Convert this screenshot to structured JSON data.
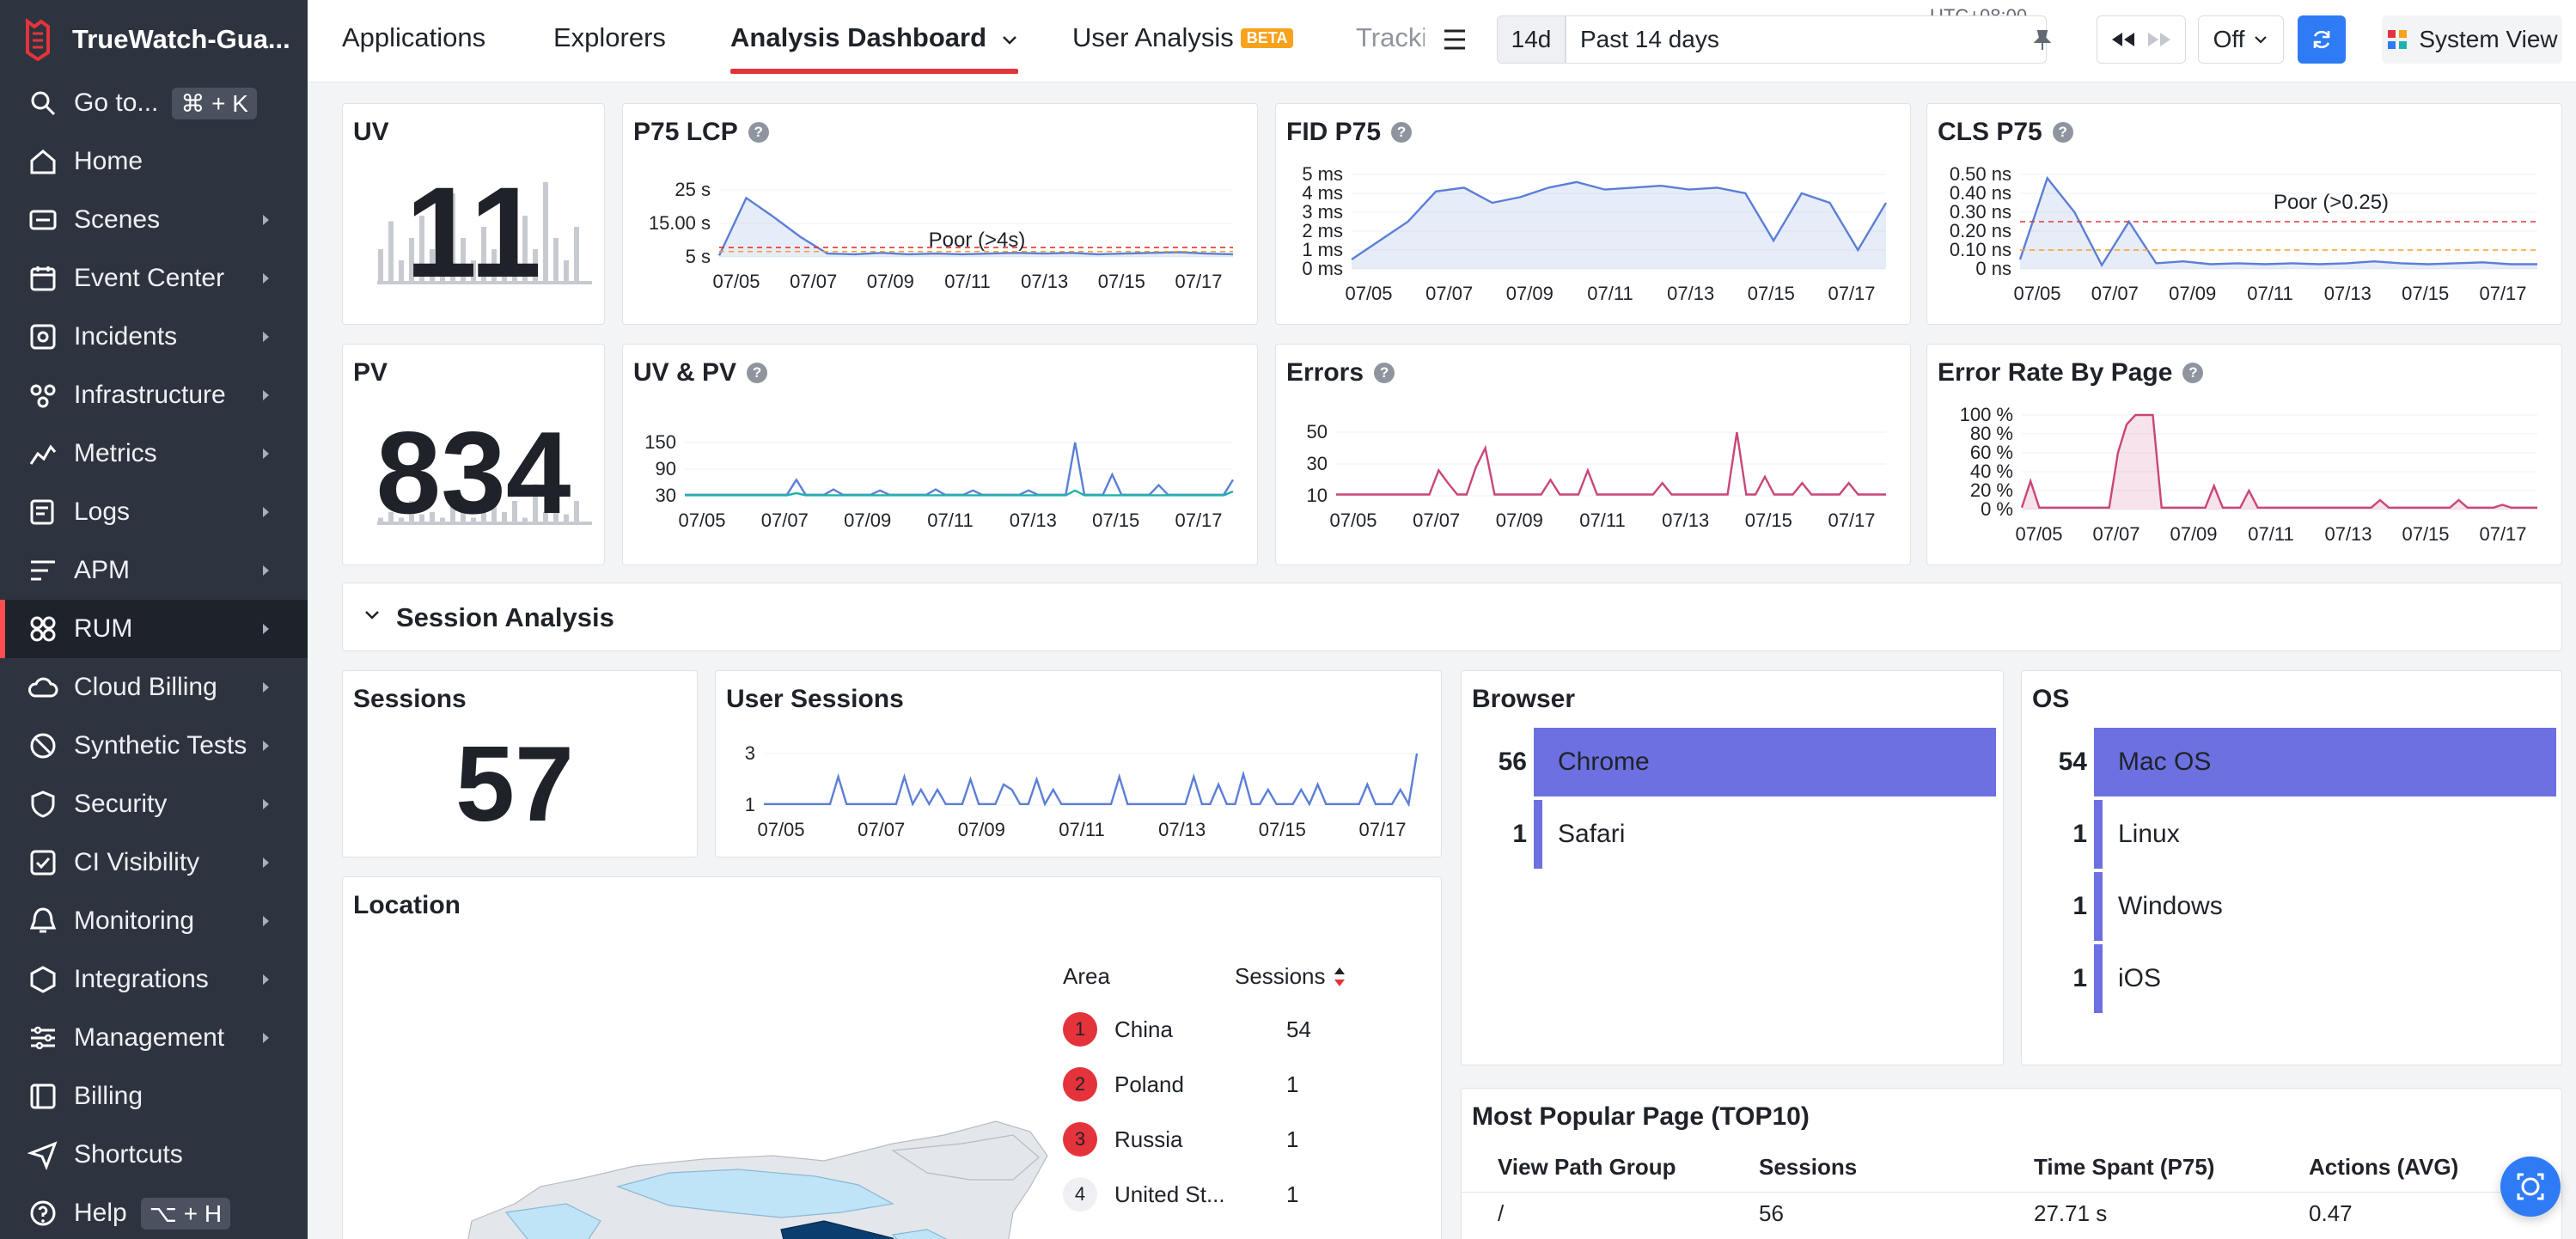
{
  "sidebar": {
    "brand": "TrueWatch-Gua...",
    "items": [
      {
        "label": "Go to...",
        "icon": "search-icon",
        "kbd": "⌘ + K"
      },
      {
        "label": "Home",
        "icon": "home-icon"
      },
      {
        "label": "Scenes",
        "icon": "scenes-icon",
        "arrow": true
      },
      {
        "label": "Event Center",
        "icon": "calendar-icon",
        "arrow": true
      },
      {
        "label": "Incidents",
        "icon": "incidents-icon",
        "arrow": true
      },
      {
        "label": "Infrastructure",
        "icon": "infrastructure-icon",
        "arrow": true
      },
      {
        "label": "Metrics",
        "icon": "metrics-icon",
        "arrow": true
      },
      {
        "label": "Logs",
        "icon": "logs-icon",
        "arrow": true
      },
      {
        "label": "APM",
        "icon": "apm-icon",
        "arrow": true
      },
      {
        "label": "RUM",
        "icon": "rum-icon",
        "arrow": true,
        "active": true
      },
      {
        "label": "Cloud Billing",
        "icon": "cloud-icon",
        "arrow": true
      },
      {
        "label": "Synthetic Tests",
        "icon": "synthetic-icon",
        "arrow": true
      },
      {
        "label": "Security",
        "icon": "shield-icon",
        "arrow": true
      },
      {
        "label": "CI Visibility",
        "icon": "ci-icon",
        "arrow": true
      },
      {
        "label": "Monitoring",
        "icon": "monitoring-icon",
        "arrow": true
      },
      {
        "label": "Integrations",
        "icon": "integrations-icon",
        "arrow": true
      },
      {
        "label": "Management",
        "icon": "management-icon",
        "arrow": true
      },
      {
        "label": "Billing",
        "icon": "billing-icon"
      },
      {
        "label": "Shortcuts",
        "icon": "shortcuts-icon"
      },
      {
        "label": "Help",
        "icon": "help-icon",
        "kbd": "⌥ + H"
      }
    ]
  },
  "topbar": {
    "tabs": [
      "Applications",
      "Explorers",
      "Analysis Dashboard",
      "User Analysis",
      "Tracki"
    ],
    "beta": "BETA",
    "timezone": "UTC+08:00",
    "range_short": "14d",
    "range_label": "Past 14 days",
    "refresh_mode": "Off",
    "system_view": "System View"
  },
  "x_ticks": [
    "07/05",
    "07/07",
    "07/09",
    "07/11",
    "07/13",
    "07/15",
    "07/17"
  ],
  "cards": {
    "uv": {
      "title": "UV",
      "value": "11"
    },
    "pv": {
      "title": "PV",
      "value": "834"
    },
    "lcp": {
      "title": "P75 LCP",
      "yticks": [
        "25 s",
        "15.00 s",
        "5 s"
      ],
      "annotation": "Poor (>4s)"
    },
    "fid": {
      "title": "FID P75",
      "yticks": [
        "5 ms",
        "4 ms",
        "3 ms",
        "2 ms",
        "1 ms",
        "0 ms"
      ]
    },
    "cls": {
      "title": "CLS P75",
      "yticks": [
        "0.50 ns",
        "0.40 ns",
        "0.30 ns",
        "0.20 ns",
        "0.10 ns",
        "0 ns"
      ],
      "annotation": "Poor (>0.25)"
    },
    "uvpv": {
      "title": "UV & PV",
      "yticks": [
        "150",
        "90",
        "30"
      ]
    },
    "errors": {
      "title": "Errors",
      "yticks": [
        "50",
        "30",
        "10"
      ]
    },
    "error_rate": {
      "title": "Error Rate By Page",
      "yticks": [
        "100 %",
        "80 %",
        "60 %",
        "40 %",
        "20 %",
        "0 %"
      ]
    },
    "sessions": {
      "title": "Sessions",
      "value": "57"
    },
    "user_sessions": {
      "title": "User Sessions",
      "yticks": [
        "3",
        "1"
      ]
    }
  },
  "session_section": {
    "title": "Session Analysis"
  },
  "browser": {
    "title": "Browser",
    "rows": [
      {
        "count": "56",
        "name": "Chrome",
        "fraction": 1.0
      },
      {
        "count": "1",
        "name": "Safari",
        "fraction": 0.018
      }
    ]
  },
  "os": {
    "title": "OS",
    "rows": [
      {
        "count": "54",
        "name": "Mac OS",
        "fraction": 1.0
      },
      {
        "count": "1",
        "name": "Linux",
        "fraction": 0.019
      },
      {
        "count": "1",
        "name": "Windows",
        "fraction": 0.019
      },
      {
        "count": "1",
        "name": "iOS",
        "fraction": 0.019
      }
    ]
  },
  "location": {
    "title": "Location",
    "col_area": "Area",
    "col_sessions": "Sessions",
    "rows": [
      {
        "rank": "1",
        "area": "China",
        "sessions": "54"
      },
      {
        "rank": "2",
        "area": "Poland",
        "sessions": "1"
      },
      {
        "rank": "3",
        "area": "Russia",
        "sessions": "1"
      },
      {
        "rank": "4",
        "area": "United St...",
        "sessions": "1"
      }
    ]
  },
  "popular_pages": {
    "title": "Most Popular Page (TOP10)",
    "columns": [
      "View Path Group",
      "Sessions",
      "Time Spant (P75)",
      "Actions (AVG)"
    ],
    "rows": [
      {
        "path": "/",
        "sessions": "56",
        "time": "27.71 s",
        "actions": "0.47"
      }
    ]
  },
  "colors": {
    "accent": "#e5333b",
    "line_blue": "#5b7fd6",
    "line_pink": "#c9467a",
    "line_teal": "#20b2aa",
    "bar": "#6c70e0",
    "sidebar": "#2e343f",
    "refresh": "#2f7bf5"
  }
}
